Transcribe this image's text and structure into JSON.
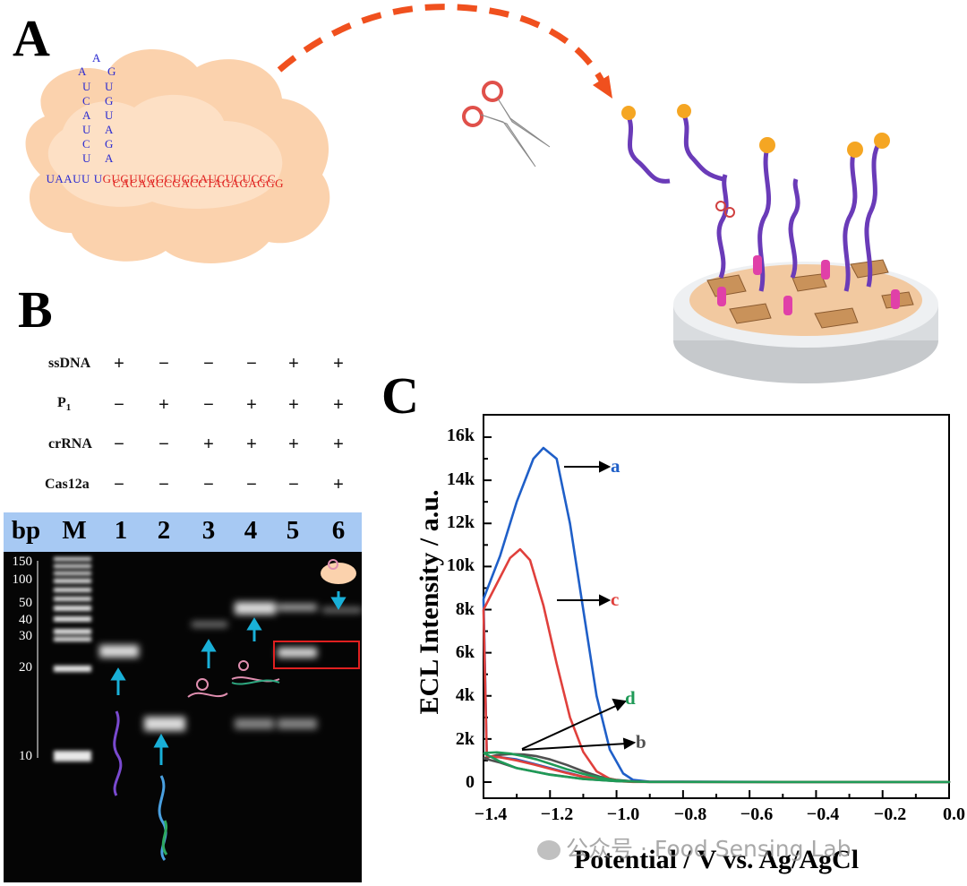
{
  "panels": {
    "a": "A",
    "b": "B",
    "c": "C"
  },
  "hairpin": {
    "loop_top": "A",
    "loop_pair": [
      "A",
      "G"
    ],
    "stem_left": [
      "U",
      "C",
      "A",
      "U",
      "C",
      "U"
    ],
    "stem_right": [
      "U",
      "G",
      "U",
      "A",
      "G",
      "A"
    ],
    "line1_blue": "UAAUU U",
    "line1_red": "GUGUUGGCUGGAUCUCUCCC",
    "line2_red": "CACAACCGACCTAGAGAGGG"
  },
  "gel_table": {
    "rows": [
      {
        "label": "ssDNA",
        "sub": "",
        "signs": [
          "+",
          "−",
          "−",
          "−",
          "+",
          "+"
        ]
      },
      {
        "label": "P",
        "sub": "1",
        "signs": [
          "−",
          "+",
          "−",
          "+",
          "+",
          "+"
        ]
      },
      {
        "label": "crRNA",
        "sub": "",
        "signs": [
          "−",
          "−",
          "+",
          "+",
          "+",
          "+"
        ]
      },
      {
        "label": "Cas12a",
        "sub": "",
        "signs": [
          "−",
          "−",
          "−",
          "−",
          "−",
          "+"
        ]
      }
    ]
  },
  "gel": {
    "header": {
      "bp": "bp",
      "marker": "M",
      "lanes": [
        "1",
        "2",
        "3",
        "4",
        "5",
        "6"
      ]
    },
    "ladder": [
      "150",
      "100",
      "50",
      "40",
      "30",
      "20",
      "10"
    ]
  },
  "chart_data": {
    "type": "line",
    "title": "",
    "xlabel": "Potential / V vs. Ag/AgCl",
    "ylabel": "ECL Intensity / a.u.",
    "xlim": [
      -1.4,
      0.0
    ],
    "ylim": [
      0,
      16000
    ],
    "x_ticks": [
      "−1.4",
      "−1.2",
      "−1.0",
      "−0.8",
      "−0.6",
      "−0.4",
      "−0.2",
      "0.0"
    ],
    "y_ticks": [
      "0",
      "2k",
      "4k",
      "6k",
      "8k",
      "10k",
      "12k",
      "14k",
      "16k"
    ],
    "series": [
      {
        "name": "a",
        "color": "#1f5fc8",
        "x": [
          -1.4,
          -1.35,
          -1.3,
          -1.25,
          -1.22,
          -1.18,
          -1.14,
          -1.1,
          -1.06,
          -1.02,
          -0.98,
          -0.95,
          -0.9,
          -0.5,
          0.0,
          -0.5,
          -0.9,
          -0.95,
          -1.0,
          -1.05,
          -1.1,
          -1.15,
          -1.2,
          -1.25,
          -1.3,
          -1.35,
          -1.39,
          -1.4
        ],
        "y": [
          8500,
          10500,
          13000,
          15000,
          15500,
          15000,
          12000,
          8000,
          4000,
          1500,
          400,
          100,
          20,
          10,
          10,
          10,
          20,
          40,
          80,
          150,
          250,
          450,
          650,
          850,
          1050,
          1150,
          1200,
          8500
        ]
      },
      {
        "name": "b",
        "color": "#505050",
        "x": [
          -1.4,
          -1.36,
          -1.32,
          -1.28,
          -1.24,
          -1.2,
          -1.15,
          -1.1,
          -1.05,
          -1.0,
          -0.95,
          -0.9,
          -0.5,
          0.0,
          -0.5,
          -0.9,
          -1.0,
          -1.1,
          -1.2,
          -1.3,
          -1.35,
          -1.4
        ],
        "y": [
          1100,
          1250,
          1300,
          1280,
          1200,
          1050,
          800,
          500,
          250,
          100,
          30,
          10,
          5,
          5,
          5,
          10,
          40,
          150,
          350,
          650,
          900,
          1100
        ]
      },
      {
        "name": "c",
        "color": "#e0403c",
        "x": [
          -1.4,
          -1.35,
          -1.32,
          -1.29,
          -1.26,
          -1.22,
          -1.18,
          -1.14,
          -1.1,
          -1.06,
          -1.02,
          -0.98,
          -0.95,
          -0.5,
          0.0,
          -0.5,
          -0.95,
          -1.0,
          -1.05,
          -1.1,
          -1.15,
          -1.2,
          -1.25,
          -1.3,
          -1.35,
          -1.39,
          -1.4
        ],
        "y": [
          8000,
          9500,
          10400,
          10800,
          10300,
          8200,
          5500,
          3000,
          1400,
          500,
          150,
          30,
          10,
          5,
          5,
          5,
          20,
          60,
          130,
          250,
          420,
          620,
          820,
          1000,
          1150,
          1200,
          8000
        ]
      },
      {
        "name": "d",
        "color": "#1f9a57",
        "x": [
          -1.4,
          -1.36,
          -1.32,
          -1.28,
          -1.24,
          -1.2,
          -1.15,
          -1.1,
          -1.05,
          -1.0,
          -0.95,
          -0.9,
          -0.5,
          0.0,
          -0.5,
          -0.9,
          -1.0,
          -1.1,
          -1.2,
          -1.3,
          -1.35,
          -1.4
        ],
        "y": [
          1350,
          1380,
          1320,
          1200,
          1050,
          850,
          600,
          380,
          200,
          80,
          25,
          10,
          5,
          5,
          5,
          10,
          40,
          140,
          340,
          650,
          950,
          1350
        ]
      }
    ]
  },
  "watermark": "公众号 · Food Sensing Lab"
}
